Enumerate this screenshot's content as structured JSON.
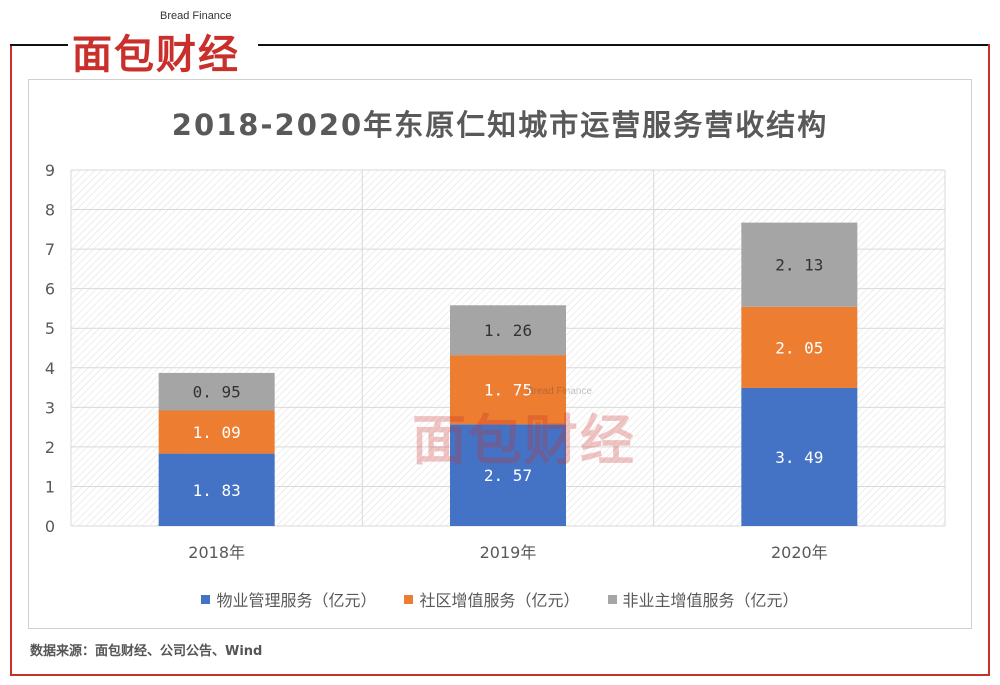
{
  "header": {
    "logo_sub": "Bread Finance",
    "logo_main": "面包财经"
  },
  "watermark": {
    "sub": "Bread Finance",
    "main": "面包财经"
  },
  "source": "数据来源：面包财经、公司公告、Wind",
  "colors": {
    "series1": "#4472c4",
    "series2": "#ed7d31",
    "series3": "#a5a5a5",
    "brand_red": "#c9302c"
  },
  "chart_data": {
    "type": "bar",
    "stacked": true,
    "title": "2018-2020年东原仁知城市运营服务营收结构",
    "categories": [
      "2018年",
      "2019年",
      "2020年"
    ],
    "series": [
      {
        "name": "物业管理服务（亿元）",
        "values": [
          1.83,
          2.57,
          3.49
        ]
      },
      {
        "name": "社区增值服务（亿元）",
        "values": [
          1.09,
          1.75,
          2.05
        ]
      },
      {
        "name": "非业主增值服务（亿元）",
        "values": [
          0.95,
          1.26,
          2.13
        ]
      }
    ],
    "ylim": [
      0,
      9
    ],
    "yticks": [
      "0",
      "1",
      "2",
      "3",
      "4",
      "5",
      "6",
      "7",
      "8",
      "9"
    ],
    "grid": true,
    "legend": "bottom"
  }
}
